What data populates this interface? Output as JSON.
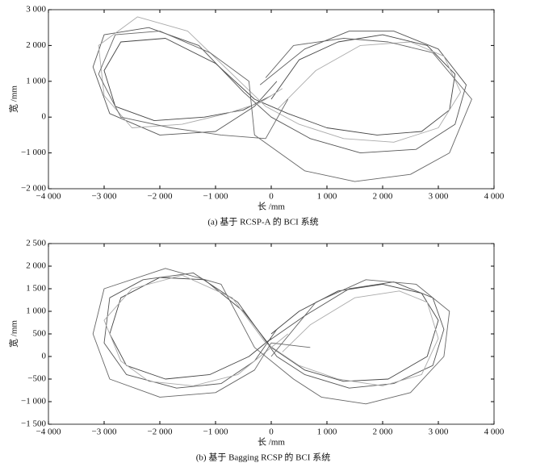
{
  "chart_data": [
    {
      "type": "line",
      "title": "(a) 基于 RCSP-A 的 BCI 系统",
      "x_label": "长 /mm",
      "y_label": "宽 /mm",
      "xlim": [
        -4000,
        4000
      ],
      "ylim": [
        -2000,
        3000
      ],
      "xticks": [
        {
          "value": -4000,
          "label": "−4 000"
        },
        {
          "value": -3000,
          "label": "−3 000"
        },
        {
          "value": -2000,
          "label": "−2 000"
        },
        {
          "value": -1000,
          "label": "−1 000"
        },
        0,
        {
          "value": 1000,
          "label": "1 000"
        },
        {
          "value": 2000,
          "label": "2 000"
        },
        {
          "value": 3000,
          "label": "3 000"
        },
        {
          "value": 4000,
          "label": "4 000"
        }
      ],
      "yticks": [
        {
          "value": -2000,
          "label": "−2 000"
        },
        {
          "value": -1000,
          "label": "−1 000"
        },
        0,
        {
          "value": 1000,
          "label": "1 000"
        },
        {
          "value": 2000,
          "label": "2 000"
        },
        {
          "value": 3000,
          "label": "3 000"
        }
      ],
      "series": [
        {
          "color": "#444444",
          "x": [
            0,
            500,
            1200,
            2000,
            2800,
            3300,
            3200,
            2700,
            1900,
            1000,
            300,
            -300,
            -1000,
            -1900,
            -2700,
            -3000,
            -2800,
            -2100,
            -1200,
            -500,
            0
          ],
          "values": [
            500,
            1600,
            2100,
            2300,
            2000,
            1200,
            200,
            -400,
            -500,
            -300,
            100,
            500,
            1500,
            2200,
            2100,
            1300,
            300,
            -100,
            0,
            200,
            600
          ]
        },
        {
          "color": "#555555",
          "x": [
            -200,
            600,
            1400,
            2200,
            3000,
            3500,
            3300,
            2600,
            1600,
            700,
            0,
            -500,
            -1300,
            -2200,
            -3000,
            -3200,
            -2900,
            -2000,
            -1000,
            -300,
            100
          ],
          "values": [
            900,
            1900,
            2400,
            2400,
            1900,
            900,
            -200,
            -900,
            -1000,
            -600,
            0,
            700,
            2000,
            2500,
            2300,
            1400,
            100,
            -500,
            -400,
            300,
            1000
          ]
        },
        {
          "color": "#aaaaaa",
          "x": [
            100,
            800,
            1600,
            2500,
            3100,
            3400,
            3000,
            2200,
            1300,
            500,
            -100,
            -700,
            -1500,
            -2400,
            -3100,
            -3000,
            -2500,
            -1600,
            -800,
            -200,
            200
          ],
          "values": [
            200,
            1300,
            2000,
            2100,
            1700,
            700,
            -300,
            -700,
            -600,
            -200,
            300,
            1200,
            2400,
            2800,
            2000,
            600,
            -300,
            -200,
            100,
            400,
            800
          ]
        },
        {
          "color": "#666666",
          "x": [
            -100,
            400,
            1300,
            2100,
            2900,
            3600,
            3200,
            2500,
            1500,
            600,
            -300,
            -400,
            -1100,
            -2000,
            -2800,
            -3100,
            -2700,
            -1800,
            -900,
            -100,
            300
          ],
          "values": [
            1100,
            2000,
            2200,
            2100,
            1800,
            500,
            -1000,
            -1600,
            -1800,
            -1500,
            -500,
            1000,
            1800,
            2400,
            2300,
            1200,
            0,
            -300,
            -500,
            -600,
            500
          ]
        }
      ]
    },
    {
      "type": "line",
      "title": "(b) 基于 Bagging RCSP 的 BCI 系统",
      "x_label": "长 /mm",
      "y_label": "宽 /mm",
      "xlim": [
        -4000,
        4000
      ],
      "ylim": [
        -1500,
        2500
      ],
      "xticks": [
        {
          "value": -4000,
          "label": "−4 000"
        },
        {
          "value": -3000,
          "label": "−3 000"
        },
        {
          "value": -2000,
          "label": "−2 000"
        },
        {
          "value": -1000,
          "label": "−1 000"
        },
        0,
        {
          "value": 1000,
          "label": "1 000"
        },
        {
          "value": 2000,
          "label": "2 000"
        },
        {
          "value": 3000,
          "label": "3 000"
        },
        {
          "value": 4000,
          "label": "4 000"
        }
      ],
      "yticks": [
        {
          "value": -1500,
          "label": "−1 500"
        },
        {
          "value": -1000,
          "label": "−1 000"
        },
        {
          "value": -500,
          "label": "−500"
        },
        0,
        500,
        {
          "value": 1000,
          "label": "1 000"
        },
        {
          "value": 1500,
          "label": "1 500"
        },
        {
          "value": 2000,
          "label": "2 000"
        },
        {
          "value": 2500,
          "label": "2 500"
        }
      ],
      "series": [
        {
          "color": "#444444",
          "x": [
            0,
            500,
            1200,
            2000,
            2700,
            3000,
            2800,
            2100,
            1300,
            600,
            0,
            -500,
            -1200,
            -2000,
            -2700,
            -2900,
            -2600,
            -1900,
            -1100,
            -400,
            0
          ],
          "values": [
            500,
            1000,
            1450,
            1600,
            1400,
            800,
            0,
            -500,
            -550,
            -300,
            200,
            1000,
            1700,
            1750,
            1300,
            500,
            -200,
            -500,
            -400,
            0,
            400
          ]
        },
        {
          "color": "#555555",
          "x": [
            -100,
            600,
            1400,
            2200,
            2900,
            3100,
            2900,
            2200,
            1400,
            600,
            100,
            -600,
            -1400,
            -2300,
            -2900,
            -3000,
            -2600,
            -1700,
            -900,
            -300,
            100
          ],
          "values": [
            300,
            900,
            1500,
            1650,
            1300,
            600,
            -200,
            -600,
            -700,
            -400,
            0,
            1200,
            1850,
            1700,
            1300,
            300,
            -400,
            -700,
            -600,
            -100,
            600
          ]
        },
        {
          "color": "#aaaaaa",
          "x": [
            200,
            700,
            1500,
            2300,
            2800,
            3000,
            2700,
            2000,
            1200,
            500,
            -100,
            -700,
            -1600,
            -2500,
            -3000,
            -2700,
            -2200,
            -1400,
            -600,
            -100,
            300
          ],
          "values": [
            100,
            700,
            1300,
            1450,
            1200,
            400,
            -400,
            -650,
            -500,
            -200,
            300,
            1300,
            1800,
            1500,
            800,
            -100,
            -550,
            -650,
            -400,
            100,
            500
          ]
        },
        {
          "color": "#666666",
          "x": [
            0,
            800,
            1700,
            2600,
            3200,
            3100,
            2500,
            1700,
            900,
            400,
            -300,
            -900,
            -1900,
            -3000,
            -3200,
            -2900,
            -2000,
            -1000,
            -300,
            0,
            700
          ],
          "values": [
            0,
            1200,
            1700,
            1600,
            1000,
            0,
            -800,
            -1050,
            -900,
            -500,
            200,
            1600,
            1950,
            1500,
            500,
            -500,
            -900,
            -800,
            -300,
            300,
            200
          ]
        }
      ]
    }
  ]
}
